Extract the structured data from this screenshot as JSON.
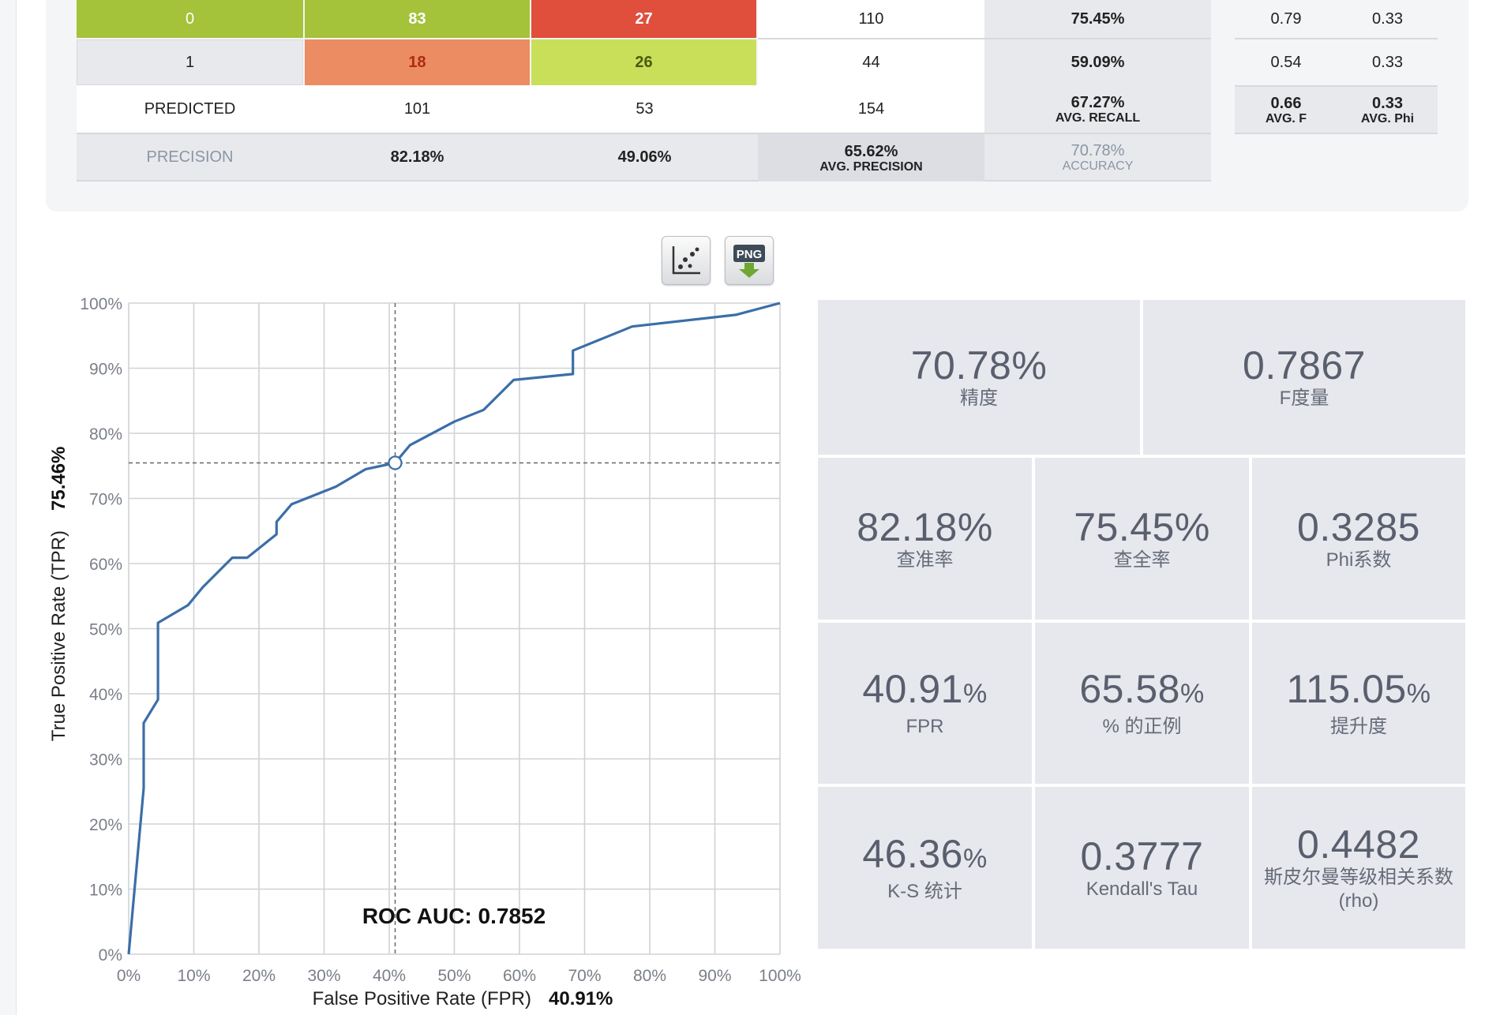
{
  "confusion_matrix": {
    "rows": [
      {
        "label": "0",
        "c0": "83",
        "c1": "27",
        "total": "110",
        "recall": "75.45%"
      },
      {
        "label": "1",
        "c0": "18",
        "c1": "26",
        "total": "44",
        "recall": "59.09%"
      }
    ],
    "predicted": {
      "label": "PREDICTED",
      "c0": "101",
      "c1": "53",
      "total": "154",
      "avg_recall": "67.27%",
      "avg_recall_label": "AVG. RECALL"
    },
    "precision": {
      "label": "PRECISION",
      "c0": "82.18%",
      "c1": "49.06%",
      "avg_precision": "65.62%",
      "avg_precision_label": "AVG. PRECISION",
      "accuracy": "70.78%",
      "accuracy_label": "ACCURACY"
    },
    "side": {
      "rows": [
        {
          "f": "0.79",
          "phi": "0.33"
        },
        {
          "f": "0.54",
          "phi": "0.33"
        }
      ],
      "avg_f": "0.66",
      "avg_f_label": "AVG. F",
      "avg_phi": "0.33",
      "avg_phi_label": "AVG. Phi"
    },
    "colors": {
      "green": "#a4c23a",
      "red": "#e04e3c",
      "orange": "#eb8c62",
      "lime": "#c9df5a",
      "grey": "#e8e9ec",
      "dark_red_text": "#b02a17",
      "dark_green_text": "#4a5a10"
    }
  },
  "toolbar": {
    "scatter_icon": "scatter-plot-icon",
    "png_label": "PNG",
    "png_icon": "png-download-icon"
  },
  "chart_data": {
    "type": "line",
    "xlabel": "False Positive Rate (FPR)",
    "ylabel": "True Positive Rate (TPR)",
    "x_value_label": "40.91%",
    "y_value_label": "75.46%",
    "annotation": "ROC AUC: 0.7852",
    "xlim": [
      0,
      100
    ],
    "ylim": [
      0,
      100
    ],
    "ticks": [
      "0%",
      "10%",
      "20%",
      "30%",
      "40%",
      "50%",
      "60%",
      "70%",
      "80%",
      "90%",
      "100%"
    ],
    "grid": true,
    "line_color": "#3b6ea8",
    "marker": {
      "x": 40.91,
      "y": 75.46
    },
    "x": [
      0,
      2.3,
      2.3,
      4.5,
      4.5,
      9.1,
      11.4,
      15.9,
      18.2,
      22.7,
      22.7,
      25.0,
      31.8,
      36.4,
      40.9,
      43.2,
      50.0,
      54.5,
      59.1,
      68.2,
      68.2,
      77.3,
      93.2,
      100
    ],
    "y": [
      0,
      25.5,
      35.5,
      39.1,
      50.9,
      53.6,
      56.4,
      60.9,
      60.9,
      64.5,
      66.4,
      69.1,
      71.8,
      74.5,
      75.46,
      78.2,
      81.8,
      83.6,
      88.2,
      89.1,
      92.7,
      96.4,
      98.2,
      100
    ]
  },
  "metrics": [
    {
      "value": "70.78%",
      "pct": "",
      "label": "精度"
    },
    {
      "value": "0.7867",
      "pct": "",
      "label": "F度量"
    },
    {
      "value": "82.18%",
      "pct": "",
      "label": "查准率"
    },
    {
      "value": "75.45%",
      "pct": "",
      "label": "查全率"
    },
    {
      "value": "0.3285",
      "pct": "",
      "label": "Phi系数"
    },
    {
      "value": "40.91",
      "pct": "%",
      "label": "FPR"
    },
    {
      "value": "65.58",
      "pct": "%",
      "label": "% 的正例"
    },
    {
      "value": "115.05",
      "pct": "%",
      "label": "提升度"
    },
    {
      "value": "46.36",
      "pct": "%",
      "label": "K-S 统计"
    },
    {
      "value": "0.3777",
      "pct": "",
      "label": "Kendall's Tau"
    },
    {
      "value": "0.4482",
      "pct": "",
      "label": "斯皮尔曼等级相关系数 (rho)"
    }
  ]
}
